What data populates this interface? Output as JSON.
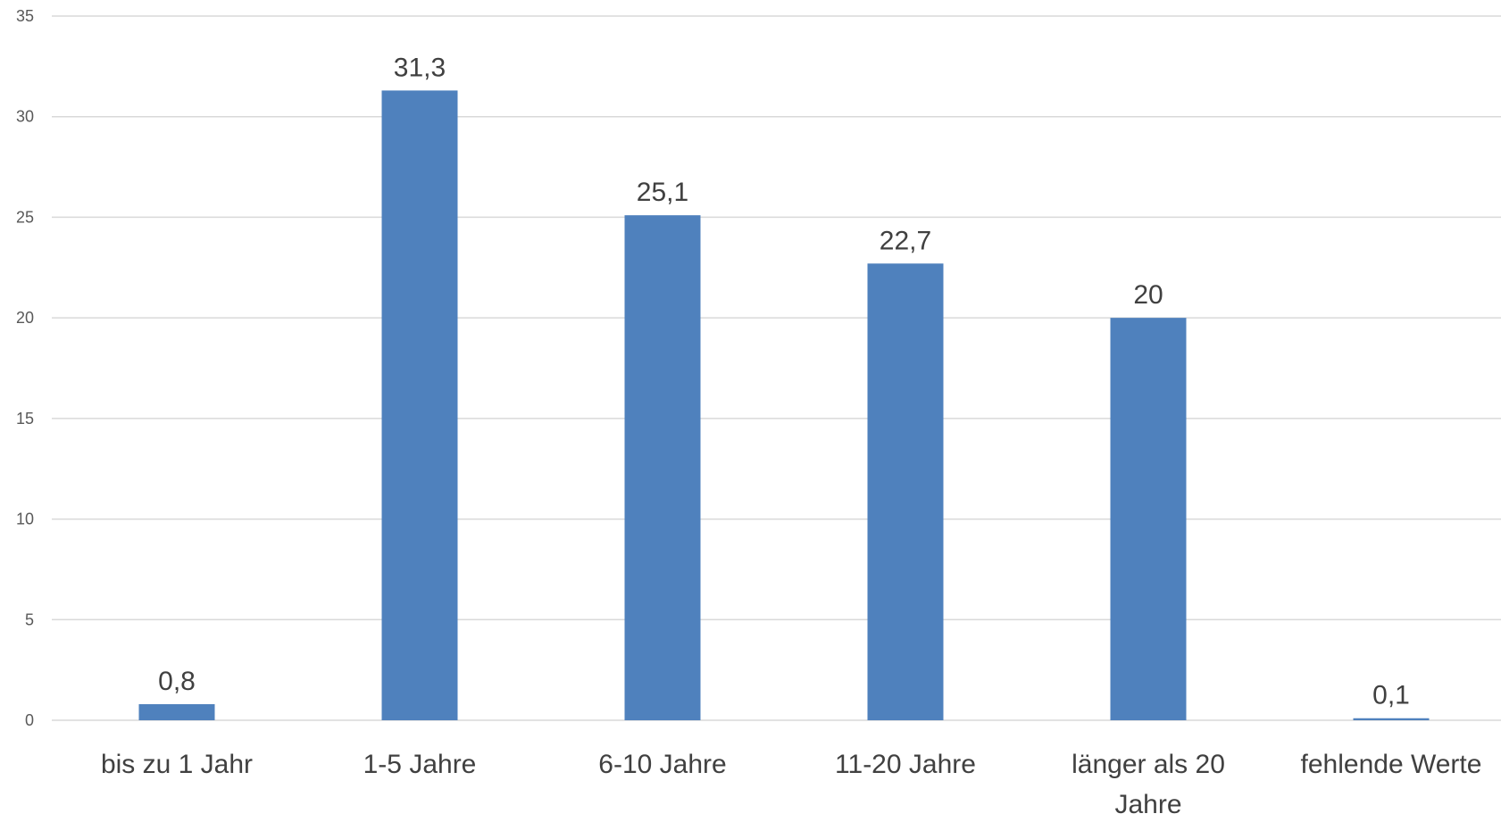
{
  "chart_data": {
    "type": "bar",
    "categories": [
      "bis zu 1 Jahr",
      "1-5 Jahre",
      "6-10 Jahre",
      "11-20 Jahre",
      "länger als 20 Jahre",
      "fehlende Werte"
    ],
    "category_lines": [
      [
        "bis zu 1 Jahr"
      ],
      [
        "1-5 Jahre"
      ],
      [
        "6-10 Jahre"
      ],
      [
        "11-20 Jahre"
      ],
      [
        "länger als 20",
        "Jahre"
      ],
      [
        "fehlende Werte"
      ]
    ],
    "values": [
      0.8,
      31.3,
      25.1,
      22.7,
      20,
      0.1
    ],
    "data_labels": [
      "0,8",
      "31,3",
      "25,1",
      "22,7",
      "20",
      "0,1"
    ],
    "yticks": [
      0,
      5,
      10,
      15,
      20,
      25,
      30,
      35
    ],
    "ylim": [
      0,
      35
    ],
    "grid": true,
    "legend": false,
    "bar_color": "#4f81bd"
  }
}
